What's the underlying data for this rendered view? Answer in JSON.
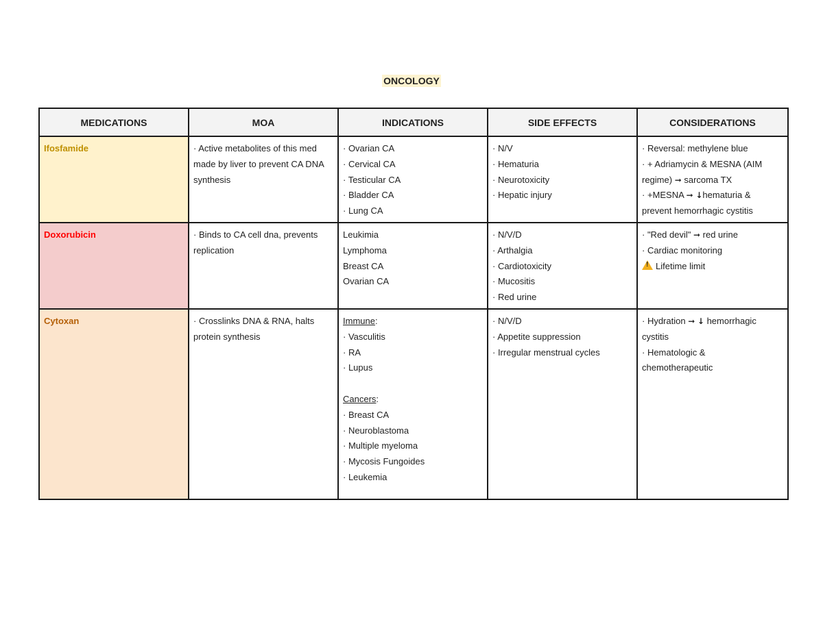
{
  "title": "ONCOLOGY",
  "colors": {
    "title_highlight": "#fdf3d0",
    "header_bg": "#f3f3f3",
    "ifosfamide_fill": "#fff2cc",
    "ifosfamide_text": "#bf9000",
    "doxorubicin_fill": "#f4cccc",
    "doxorubicin_text": "#ff0000",
    "cytoxan_fill": "#fce5cd",
    "cytoxan_text": "#b45f06"
  },
  "headers": {
    "medications": "MEDICATIONS",
    "moa": "MOA",
    "indications": "INDICATIONS",
    "side_effects": "SIDE EFFECTS",
    "considerations": "CONSIDERATIONS"
  },
  "rows": [
    {
      "medication": "Ifosfamide",
      "moa": "· Active metabolites of this med made by liver to prevent CA DNA synthesis",
      "indications": [
        "· Ovarian  CA",
        "· Cervical CA",
        "· Testicular CA",
        "· Bladder CA",
        "· Lung CA"
      ],
      "side_effects": [
        "· N/V",
        "· Hematuria",
        "· Neurotoxicity",
        "· Hepatic injury"
      ],
      "considerations": {
        "c1": "· Reversal: methylene blue",
        "c2_line1": "· + Adriamycin & MESNA (AIM",
        "c2_line2a": "regime) ",
        "c2_arrow": "➞",
        "c2_line2b": " sarcoma TX",
        "c3_line1a": "· +MESNA ",
        "c3_arrow": "➞",
        "c3_down": "↓",
        "c3_line1b": "hematuria &",
        "c3_line2": "prevent hemorrhagic cystitis"
      }
    },
    {
      "medication": "Doxorubicin",
      "moa": "· Binds to CA cell dna, prevents replication",
      "indications": [
        "Leukimia",
        "Lymphoma",
        "Breast CA",
        "Ovarian CA"
      ],
      "side_effects": [
        "· N/V/D",
        "· Arthalgia",
        "· Cardiotoxicity",
        "· Mucositis",
        "· Red urine"
      ],
      "considerations": {
        "c1a": "· \"Red devil\" ",
        "c1_arrow": "➞",
        "c1b": " red urine",
        "c2": "· Cardiac monitoring",
        "c3": "Lifetime limit",
        "c3_icon": "warning-icon"
      }
    },
    {
      "medication": "Cytoxan",
      "moa": "· Crosslinks DNA & RNA, halts protein synthesis",
      "indications": {
        "immune_heading": "Immune",
        "immune_colon": ":",
        "immune": [
          "· Vasculitis",
          "· RA",
          "· Lupus"
        ],
        "cancers_heading": "Cancers",
        "cancers_colon": ":",
        "cancers": [
          "· Breast CA",
          "· Neuroblastoma",
          "· Multiple myeloma",
          "· Mycosis Fungoides",
          "· Leukemia"
        ]
      },
      "side_effects": [
        "· N/V/D",
        "· Appetite suppression",
        "· Irregular menstrual cycles"
      ],
      "considerations": {
        "c1a": "· Hydration ",
        "c1_arrow": "➞",
        "c1_down": "↓",
        "c1b": " hemorrhagic",
        "c1_line2": "cystitis",
        "c2_line1": "· Hematologic &",
        "c2_line2": "chemotherapeutic"
      }
    }
  ]
}
